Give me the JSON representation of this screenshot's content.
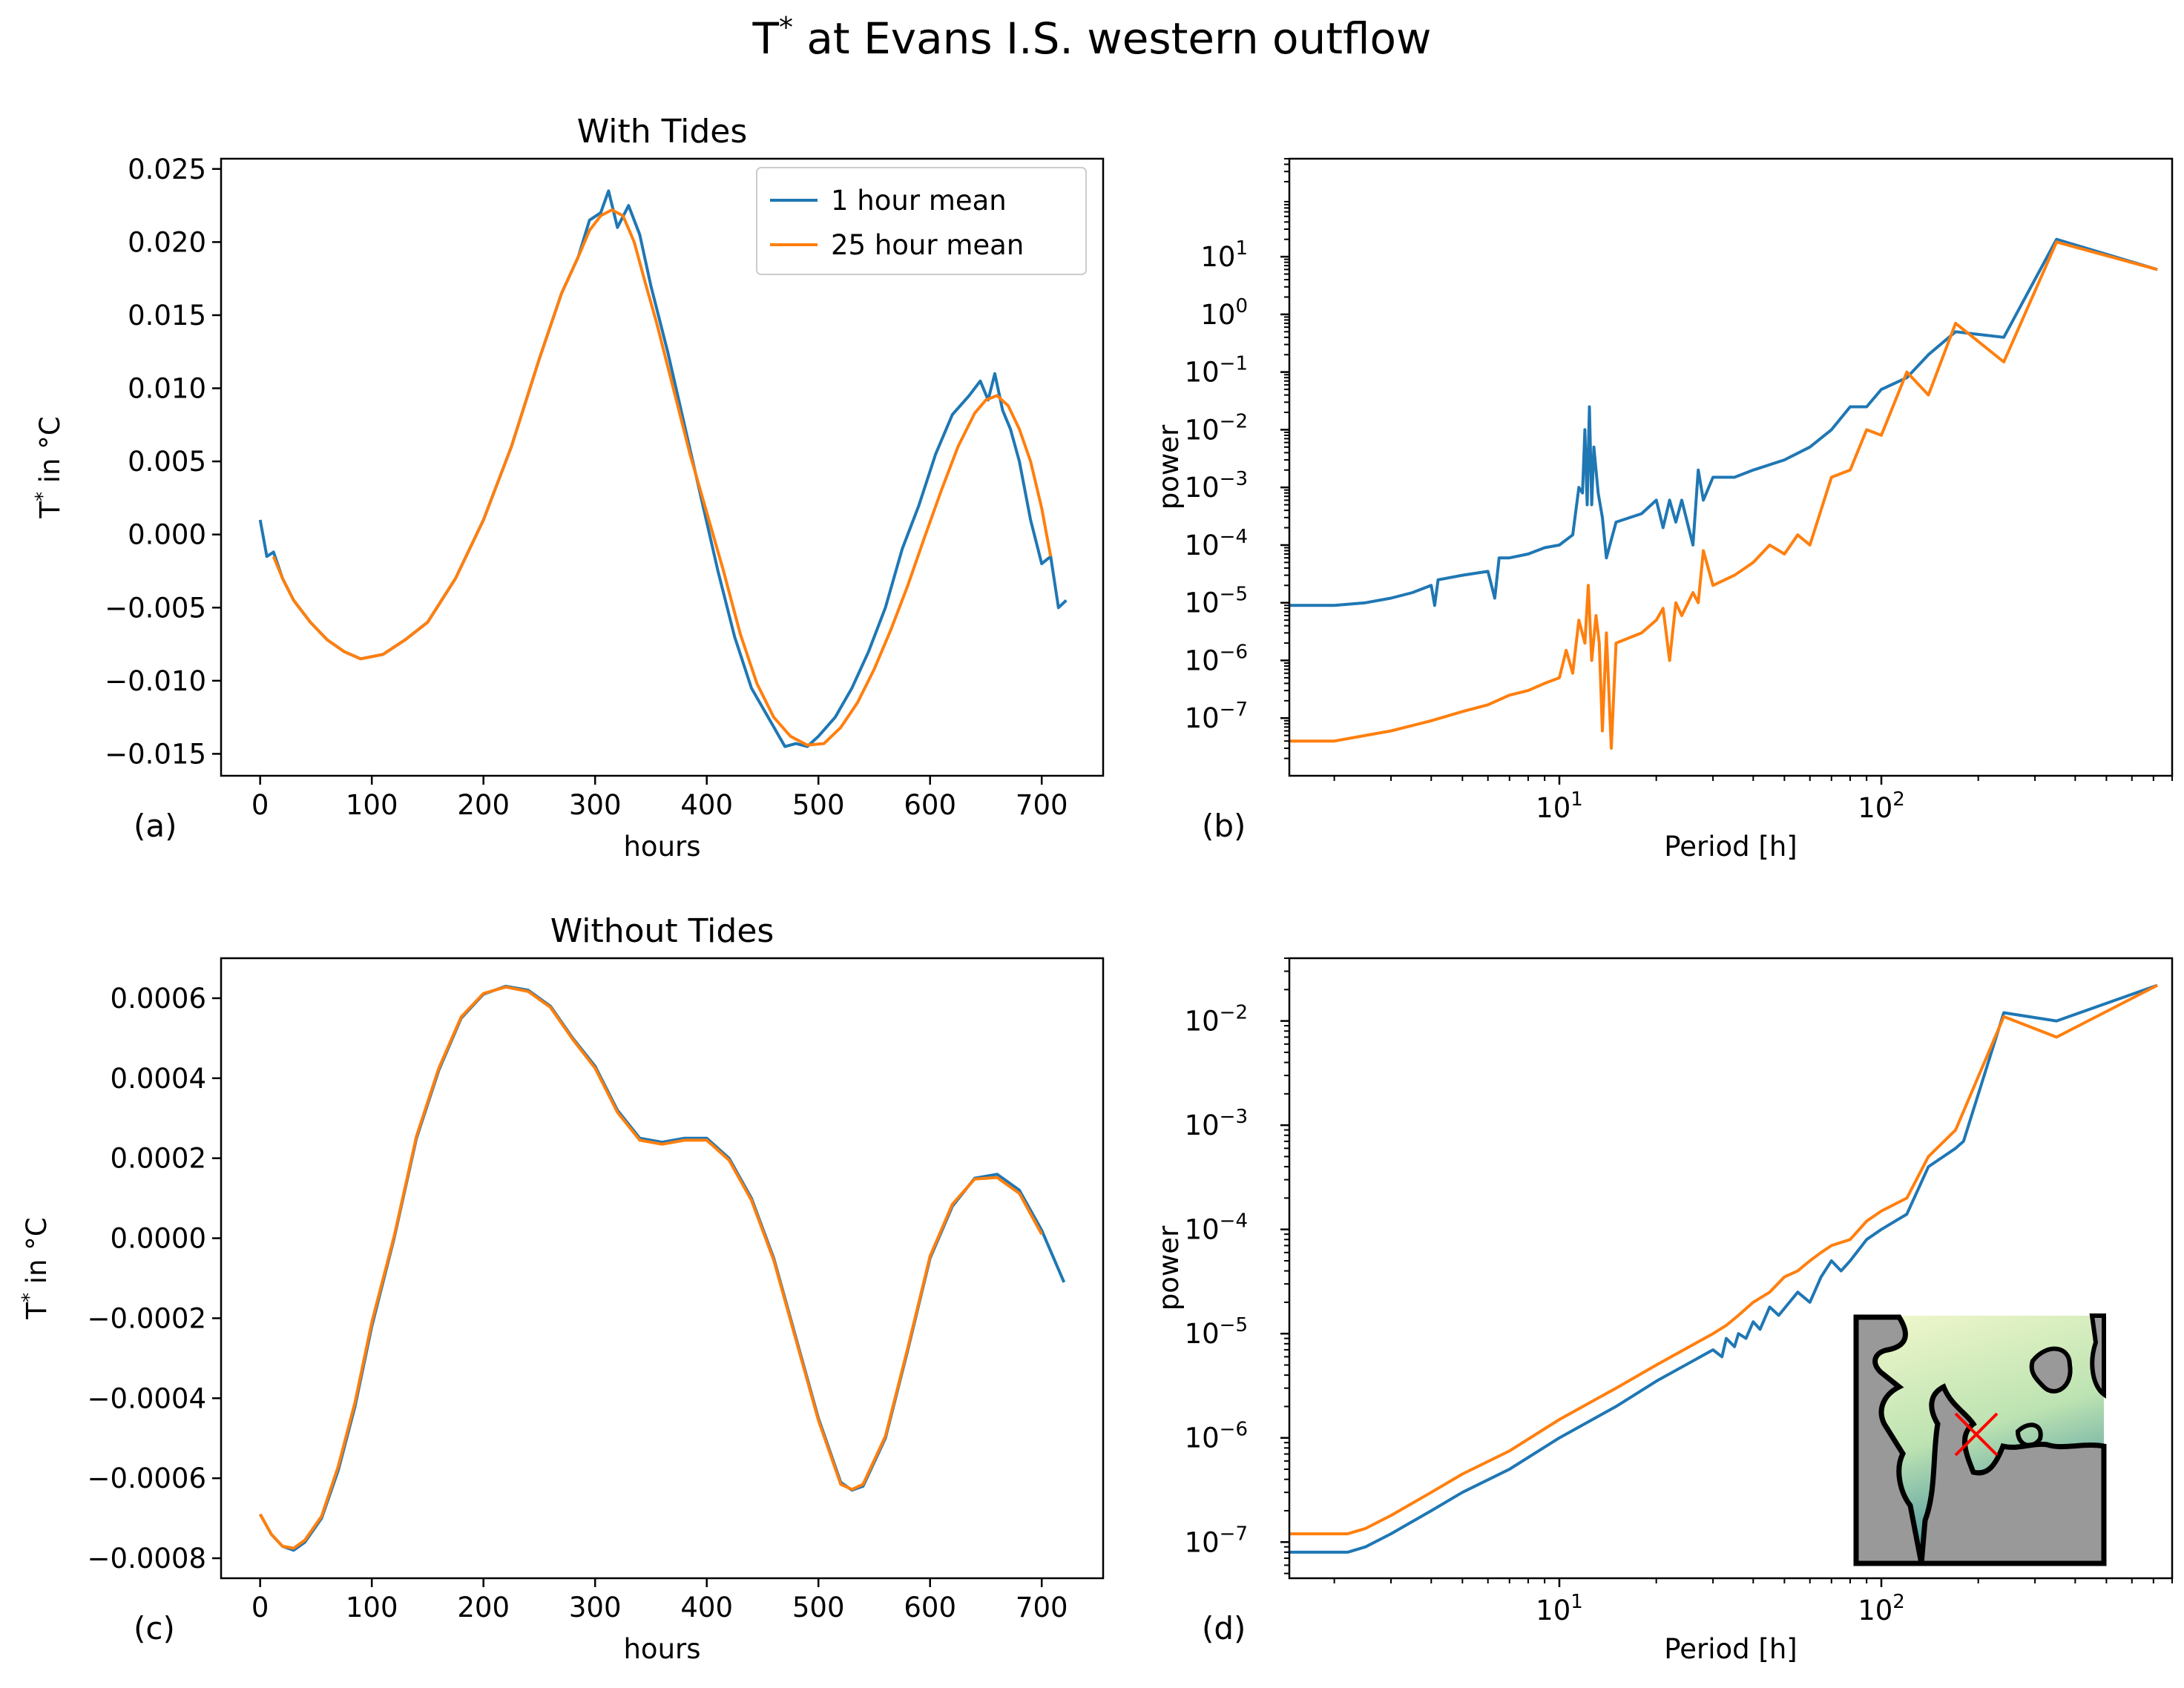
{
  "figure": {
    "title": "T* at Evans I.S. western outflow",
    "title_main": "T",
    "title_sup": "*",
    "title_rest": " at Evans I.S. western outflow"
  },
  "colors": {
    "blue": "#1f77b4",
    "orange": "#ff7f0e",
    "marker": "#ff0000",
    "inset_land": "#999999"
  },
  "icons": {
    "inset": "antarctic-map-inset"
  },
  "chart_data": [
    {
      "type": "line",
      "panel_label": "(a)",
      "title": "With Tides",
      "xlabel": "hours",
      "ylabel": "T* in °C",
      "xlim": [
        -35,
        755
      ],
      "ylim": [
        -0.0165,
        0.0257
      ],
      "xticks": [
        0,
        100,
        200,
        300,
        400,
        500,
        600,
        700
      ],
      "xtick_labels": [
        "0",
        "100",
        "200",
        "300",
        "400",
        "500",
        "600",
        "700"
      ],
      "yticks": [
        -0.015,
        -0.01,
        -0.005,
        0.0,
        0.005,
        0.01,
        0.015,
        0.02,
        0.025
      ],
      "ytick_labels": [
        "−0.015",
        "−0.010",
        "−0.005",
        "0.000",
        "0.005",
        "0.010",
        "0.015",
        "0.020",
        "0.025"
      ],
      "legend": {
        "position": "top-right",
        "entries": [
          "1 hour mean",
          "25 hour mean"
        ]
      },
      "series": [
        {
          "name": "1 hour mean",
          "color": "#1f77b4",
          "x": [
            0,
            6,
            12,
            20,
            30,
            45,
            60,
            75,
            90,
            110,
            130,
            150,
            175,
            200,
            225,
            250,
            270,
            285,
            295,
            305,
            312,
            320,
            330,
            340,
            350,
            365,
            380,
            395,
            410,
            425,
            440,
            455,
            470,
            480,
            490,
            500,
            515,
            530,
            545,
            560,
            575,
            590,
            605,
            620,
            635,
            645,
            652,
            658,
            665,
            672,
            680,
            690,
            700,
            708,
            715,
            722
          ],
          "y": [
            0.001,
            -0.0015,
            -0.0012,
            -0.003,
            -0.0045,
            -0.006,
            -0.0072,
            -0.008,
            -0.0085,
            -0.0082,
            -0.0072,
            -0.006,
            -0.003,
            0.001,
            0.006,
            0.012,
            0.0165,
            0.019,
            0.0215,
            0.022,
            0.0235,
            0.021,
            0.0225,
            0.0205,
            0.017,
            0.0125,
            0.0075,
            0.0025,
            -0.0025,
            -0.007,
            -0.0105,
            -0.0125,
            -0.0145,
            -0.0143,
            -0.0145,
            -0.0138,
            -0.0125,
            -0.0105,
            -0.008,
            -0.005,
            -0.001,
            0.002,
            0.0055,
            0.0082,
            0.0095,
            0.0105,
            0.0092,
            0.011,
            0.0085,
            0.0072,
            0.005,
            0.001,
            -0.002,
            -0.0015,
            -0.005,
            -0.0045
          ]
        },
        {
          "name": "25 hour mean",
          "color": "#ff7f0e",
          "x": [
            12,
            20,
            30,
            45,
            60,
            75,
            90,
            110,
            130,
            150,
            175,
            200,
            225,
            250,
            270,
            285,
            295,
            305,
            315,
            325,
            335,
            345,
            355,
            370,
            385,
            400,
            415,
            430,
            445,
            460,
            475,
            490,
            505,
            520,
            535,
            550,
            565,
            580,
            595,
            610,
            625,
            640,
            650,
            660,
            670,
            680,
            690,
            700,
            708
          ],
          "y": [
            -0.0015,
            -0.003,
            -0.0045,
            -0.006,
            -0.0072,
            -0.008,
            -0.0085,
            -0.0082,
            -0.0072,
            -0.006,
            -0.003,
            0.001,
            0.006,
            0.012,
            0.0165,
            0.019,
            0.0208,
            0.0218,
            0.0222,
            0.0218,
            0.02,
            0.0172,
            0.0145,
            0.01,
            0.0055,
            0.0015,
            -0.0025,
            -0.0068,
            -0.0102,
            -0.0125,
            -0.0138,
            -0.0144,
            -0.0143,
            -0.0132,
            -0.0115,
            -0.0092,
            -0.0065,
            -0.0035,
            -0.0002,
            0.003,
            0.006,
            0.0083,
            0.0092,
            0.0095,
            0.0088,
            0.0072,
            0.005,
            0.0018,
            -0.0015
          ]
        }
      ]
    },
    {
      "type": "line",
      "panel_label": "(b)",
      "title": "",
      "xlabel": "Period [h]",
      "ylabel": "power",
      "xscale": "log",
      "yscale": "log",
      "xlim": [
        1.45,
        800
      ],
      "ylim": [
        1e-08,
        500.0
      ],
      "xticks": [
        10,
        100
      ],
      "xtick_labels": [
        "10^1",
        "10^2"
      ],
      "yticks": [
        1e-07,
        1e-06,
        1e-05,
        0.0001,
        0.001,
        0.01,
        0.1,
        1,
        10
      ],
      "ytick_labels": [
        "10^-7",
        "10^-6",
        "10^-5",
        "10^-4",
        "10^-3",
        "10^-2",
        "10^-1",
        "10^0",
        "10^1"
      ],
      "series": [
        {
          "name": "1 hour mean",
          "color": "#1f77b4",
          "x": [
            1.45,
            2.0,
            2.5,
            3.0,
            3.5,
            4.0,
            4.1,
            4.2,
            5.0,
            6.0,
            6.3,
            6.5,
            7.0,
            8.0,
            9.0,
            10.0,
            11.0,
            11.5,
            11.8,
            12.0,
            12.2,
            12.4,
            12.6,
            12.8,
            13.2,
            13.6,
            14.0,
            15.0,
            18.0,
            20.0,
            21.0,
            22.0,
            23.0,
            24.0,
            26.0,
            27.0,
            28.0,
            30.0,
            35.0,
            40.0,
            50.0,
            60.0,
            70.0,
            80.0,
            90.0,
            100.0,
            120.0,
            140.0,
            170.0,
            240.0,
            350.0,
            720.0
          ],
          "y": [
            9e-06,
            9e-06,
            1e-05,
            1.2e-05,
            1.5e-05,
            2e-05,
            9e-06,
            2.5e-05,
            3e-05,
            3.5e-05,
            1.2e-05,
            6e-05,
            6e-05,
            7e-05,
            9e-05,
            0.0001,
            0.00015,
            0.001,
            0.0008,
            0.01,
            0.0005,
            0.025,
            0.0005,
            0.005,
            0.0008,
            0.0003,
            6e-05,
            0.00025,
            0.00035,
            0.0006,
            0.0002,
            0.0006,
            0.00025,
            0.0006,
            0.0001,
            0.002,
            0.0006,
            0.0015,
            0.0015,
            0.002,
            0.003,
            0.005,
            0.01,
            0.025,
            0.025,
            0.05,
            0.08,
            0.2,
            0.5,
            0.4,
            20,
            6
          ]
        },
        {
          "name": "25 hour mean",
          "color": "#ff7f0e",
          "x": [
            1.45,
            2.0,
            2.5,
            3.0,
            4.0,
            5.0,
            6.0,
            7.0,
            8.0,
            9.0,
            10.0,
            10.5,
            11.0,
            11.5,
            12.0,
            12.3,
            12.6,
            13.0,
            13.3,
            13.6,
            14.0,
            14.5,
            15.0,
            18.0,
            20.0,
            21.0,
            22.0,
            23.0,
            24.0,
            26.0,
            27.0,
            28.0,
            30.0,
            35.0,
            40.0,
            45.0,
            50.0,
            55.0,
            60.0,
            70.0,
            80.0,
            90.0,
            100.0,
            120.0,
            140.0,
            170.0,
            240.0,
            350.0,
            720.0
          ],
          "y": [
            4e-08,
            4e-08,
            5e-08,
            6e-08,
            9e-08,
            1.3e-07,
            1.7e-07,
            2.5e-07,
            3e-07,
            4e-07,
            5e-07,
            1.5e-06,
            6e-07,
            5e-06,
            2e-06,
            2e-05,
            1e-06,
            6e-06,
            2e-06,
            6e-08,
            3e-06,
            3e-08,
            2e-06,
            3e-06,
            5e-06,
            8e-06,
            1e-06,
            1e-05,
            6e-06,
            1.5e-05,
            1e-05,
            8e-05,
            2e-05,
            3e-05,
            5e-05,
            0.0001,
            7e-05,
            0.00015,
            0.0001,
            0.0015,
            0.002,
            0.01,
            0.008,
            0.1,
            0.04,
            0.7,
            0.15,
            18,
            6
          ]
        }
      ]
    },
    {
      "type": "line",
      "panel_label": "(c)",
      "title": "Without Tides",
      "xlabel": "hours",
      "ylabel": "T* in °C",
      "xlim": [
        -35,
        755
      ],
      "ylim": [
        -0.00085,
        0.0007
      ],
      "xticks": [
        0,
        100,
        200,
        300,
        400,
        500,
        600,
        700
      ],
      "xtick_labels": [
        "0",
        "100",
        "200",
        "300",
        "400",
        "500",
        "600",
        "700"
      ],
      "yticks": [
        -0.0008,
        -0.0006,
        -0.0004,
        -0.0002,
        0.0,
        0.0002,
        0.0004,
        0.0006
      ],
      "ytick_labels": [
        "−0.0008",
        "−0.0006",
        "−0.0004",
        "−0.0002",
        "0.0000",
        "0.0002",
        "0.0004",
        "0.0006"
      ],
      "series": [
        {
          "name": "1 hour mean",
          "color": "#1f77b4",
          "x": [
            0,
            10,
            20,
            30,
            40,
            55,
            70,
            85,
            100,
            120,
            140,
            160,
            180,
            200,
            220,
            240,
            260,
            280,
            300,
            320,
            340,
            360,
            380,
            400,
            420,
            440,
            460,
            480,
            500,
            520,
            530,
            540,
            560,
            580,
            600,
            620,
            640,
            660,
            680,
            700,
            720
          ],
          "y": [
            -0.00069,
            -0.00074,
            -0.00077,
            -0.00078,
            -0.00076,
            -0.0007,
            -0.00058,
            -0.00042,
            -0.00022,
            0.0,
            0.00025,
            0.00042,
            0.00055,
            0.00061,
            0.00063,
            0.00062,
            0.00058,
            0.0005,
            0.00043,
            0.00032,
            0.00025,
            0.00024,
            0.00025,
            0.00025,
            0.0002,
            0.0001,
            -5e-05,
            -0.00025,
            -0.00045,
            -0.00061,
            -0.00063,
            -0.00062,
            -0.0005,
            -0.00028,
            -5e-05,
            8e-05,
            0.00015,
            0.00016,
            0.00012,
            2e-05,
            -0.00011
          ]
        },
        {
          "name": "25 hour mean",
          "color": "#ff7f0e",
          "x": [
            0,
            10,
            20,
            30,
            40,
            55,
            70,
            85,
            100,
            120,
            140,
            160,
            180,
            200,
            220,
            240,
            260,
            280,
            300,
            320,
            340,
            360,
            380,
            400,
            420,
            440,
            460,
            480,
            500,
            520,
            530,
            540,
            560,
            580,
            600,
            620,
            640,
            660,
            680,
            700
          ],
          "y": [
            -0.00069,
            -0.00074,
            -0.00077,
            -0.000775,
            -0.000755,
            -0.000695,
            -0.00057,
            -0.00041,
            -0.00021,
            5e-06,
            0.000255,
            0.000425,
            0.000553,
            0.000612,
            0.000628,
            0.000617,
            0.000577,
            0.000497,
            0.000425,
            0.000315,
            0.000245,
            0.000235,
            0.000245,
            0.000245,
            0.000195,
            9.5e-05,
            -5.5e-05,
            -0.000255,
            -0.000455,
            -0.000615,
            -0.000628,
            -0.000615,
            -0.000495,
            -0.000275,
            -4.5e-05,
            8.5e-05,
            0.000148,
            0.000152,
            0.000112,
            1e-05
          ]
        }
      ]
    },
    {
      "type": "line",
      "panel_label": "(d)",
      "title": "",
      "xlabel": "Period [h]",
      "ylabel": "power",
      "xscale": "log",
      "yscale": "log",
      "xlim": [
        1.45,
        800
      ],
      "ylim": [
        4.5e-08,
        0.04
      ],
      "xticks": [
        10,
        100
      ],
      "xtick_labels": [
        "10^1",
        "10^2"
      ],
      "yticks": [
        1e-07,
        1e-06,
        1e-05,
        0.0001,
        0.001,
        0.01
      ],
      "ytick_labels": [
        "10^-7",
        "10^-6",
        "10^-5",
        "10^-4",
        "10^-3",
        "10^-2"
      ],
      "series": [
        {
          "name": "1 hour mean",
          "color": "#1f77b4",
          "x": [
            1.45,
            2.0,
            2.2,
            2.5,
            3.0,
            4.0,
            5.0,
            7.0,
            10.0,
            15.0,
            20.0,
            30.0,
            32.0,
            33.0,
            35.0,
            36.0,
            38.0,
            40.0,
            42.0,
            45.0,
            48.0,
            55.0,
            60.0,
            65.0,
            70.0,
            75.0,
            80.0,
            90.0,
            100.0,
            120.0,
            140.0,
            170.0,
            180.0,
            240.0,
            350.0,
            720.0
          ],
          "y": [
            8e-08,
            8e-08,
            8e-08,
            9e-08,
            1.2e-07,
            2e-07,
            3e-07,
            5e-07,
            1e-06,
            2e-06,
            3.5e-06,
            7e-06,
            6e-06,
            9e-06,
            7.5e-06,
            1e-05,
            9e-06,
            1.3e-05,
            1.1e-05,
            1.8e-05,
            1.5e-05,
            2.5e-05,
            2e-05,
            3.5e-05,
            5e-05,
            4e-05,
            5e-05,
            8e-05,
            0.0001,
            0.00014,
            0.0004,
            0.0006,
            0.0007,
            0.012,
            0.01,
            0.022
          ]
        },
        {
          "name": "25 hour mean",
          "color": "#ff7f0e",
          "x": [
            1.45,
            2.0,
            2.2,
            2.5,
            3.0,
            4.0,
            5.0,
            7.0,
            10.0,
            15.0,
            20.0,
            30.0,
            33.0,
            36.0,
            40.0,
            45.0,
            50.0,
            55.0,
            60.0,
            65.0,
            70.0,
            80.0,
            90.0,
            100.0,
            120.0,
            140.0,
            170.0,
            240.0,
            350.0,
            720.0
          ],
          "y": [
            1.2e-07,
            1.2e-07,
            1.2e-07,
            1.35e-07,
            1.8e-07,
            3e-07,
            4.5e-07,
            7.5e-07,
            1.5e-06,
            3e-06,
            5e-06,
            1e-05,
            1.2e-05,
            1.5e-05,
            2e-05,
            2.5e-05,
            3.5e-05,
            4e-05,
            5e-05,
            6e-05,
            7e-05,
            8e-05,
            0.00012,
            0.00015,
            0.0002,
            0.0005,
            0.0009,
            0.011,
            0.007,
            0.022
          ]
        }
      ]
    }
  ]
}
